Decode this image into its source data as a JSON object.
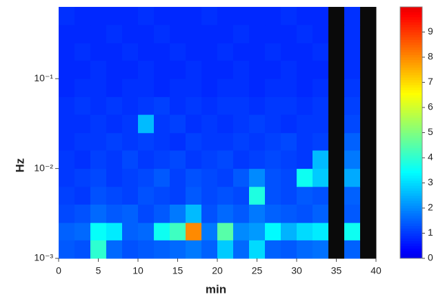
{
  "chart_data": {
    "type": "heatmap",
    "xlabel": "min",
    "ylabel": "Hz",
    "x": [
      0,
      2,
      4,
      6,
      8,
      10,
      12,
      14,
      16,
      18,
      20,
      22,
      24,
      26,
      28,
      30,
      32,
      34,
      36,
      38,
      40
    ],
    "y": [
      0.001,
      0.0016,
      0.0025,
      0.004,
      0.0063,
      0.01,
      0.016,
      0.025,
      0.04,
      0.063,
      0.1,
      0.16,
      0.25,
      0.4,
      0.63
    ],
    "z": [
      [
        1.4,
        1.3,
        4.0,
        1.6,
        1.3,
        1.4,
        1.5,
        1.6,
        1.8,
        1.5,
        2.8,
        1.6,
        3.0,
        1.5,
        1.4,
        1.6,
        1.7,
        null,
        1.5,
        null
      ],
      [
        1.5,
        1.6,
        3.5,
        3.2,
        1.5,
        1.6,
        3.6,
        4.2,
        8.0,
        1.8,
        4.5,
        2.0,
        2.2,
        3.4,
        2.5,
        3.0,
        3.2,
        null,
        3.6,
        null
      ],
      [
        1.2,
        1.3,
        1.6,
        1.4,
        1.5,
        1.2,
        1.4,
        1.8,
        2.6,
        1.3,
        1.6,
        1.4,
        1.8,
        1.5,
        1.4,
        1.3,
        1.5,
        null,
        1.4,
        null
      ],
      [
        1.1,
        1.0,
        1.3,
        1.2,
        1.1,
        1.3,
        1.2,
        1.1,
        1.4,
        1.2,
        1.3,
        1.2,
        3.8,
        1.3,
        1.2,
        1.4,
        1.3,
        null,
        1.5,
        null
      ],
      [
        1.0,
        1.1,
        1.2,
        1.0,
        1.1,
        1.2,
        1.4,
        1.1,
        1.3,
        1.2,
        1.1,
        1.4,
        2.0,
        1.3,
        1.2,
        3.6,
        2.8,
        null,
        2.4,
        null
      ],
      [
        1.0,
        0.9,
        1.1,
        1.0,
        1.2,
        1.0,
        1.1,
        1.2,
        1.0,
        1.1,
        1.2,
        1.0,
        1.1,
        1.2,
        1.1,
        1.0,
        2.6,
        null,
        1.8,
        null
      ],
      [
        0.9,
        1.0,
        1.0,
        1.1,
        1.0,
        1.1,
        1.0,
        0.9,
        1.1,
        1.0,
        1.0,
        1.1,
        1.0,
        1.1,
        1.2,
        1.0,
        1.1,
        null,
        1.5,
        null
      ],
      [
        0.9,
        0.9,
        1.0,
        0.9,
        1.0,
        2.6,
        1.0,
        1.1,
        0.9,
        1.0,
        0.9,
        1.0,
        1.1,
        1.0,
        0.9,
        1.0,
        1.0,
        null,
        1.2,
        null
      ],
      [
        0.9,
        1.0,
        0.9,
        1.0,
        0.9,
        1.0,
        1.1,
        0.9,
        1.0,
        0.9,
        1.0,
        1.0,
        0.9,
        1.0,
        1.0,
        0.9,
        1.0,
        null,
        1.1,
        null
      ],
      [
        0.8,
        0.9,
        0.9,
        0.8,
        0.9,
        0.9,
        0.8,
        0.9,
        0.9,
        0.8,
        0.9,
        0.9,
        0.8,
        0.9,
        0.9,
        0.8,
        0.9,
        null,
        1.0,
        null
      ],
      [
        0.8,
        0.8,
        0.9,
        0.8,
        0.8,
        0.9,
        0.8,
        0.8,
        0.9,
        0.8,
        0.8,
        0.9,
        0.8,
        0.8,
        0.9,
        0.8,
        0.8,
        null,
        0.9,
        null
      ],
      [
        0.8,
        0.9,
        0.8,
        0.8,
        0.9,
        0.8,
        0.8,
        0.9,
        0.8,
        0.8,
        0.9,
        0.8,
        0.8,
        0.9,
        0.8,
        0.8,
        0.9,
        null,
        0.9,
        null
      ],
      [
        0.8,
        0.8,
        0.8,
        0.9,
        0.8,
        0.8,
        0.9,
        0.8,
        0.8,
        0.8,
        0.8,
        0.9,
        0.8,
        0.8,
        0.8,
        0.9,
        0.8,
        null,
        0.9,
        null
      ],
      [
        0.9,
        0.8,
        0.8,
        0.8,
        0.8,
        0.9,
        0.8,
        0.8,
        0.8,
        0.9,
        0.8,
        0.8,
        0.8,
        0.8,
        0.9,
        0.8,
        0.8,
        null,
        0.9,
        null
      ]
    ],
    "xlim": [
      0,
      40
    ],
    "xticks": [
      0,
      5,
      10,
      15,
      20,
      25,
      30,
      35,
      40
    ],
    "ylim": [
      0.001,
      0.63
    ],
    "log_y": true,
    "yticks": [
      {
        "value": 0.001,
        "label": "10⁻³"
      },
      {
        "value": 0.01,
        "label": "10⁻²"
      },
      {
        "value": 0.1,
        "label": "10⁻¹"
      }
    ],
    "zlim": [
      0,
      10
    ],
    "zticks": [
      0,
      1,
      2,
      3,
      4,
      5,
      6,
      7,
      8,
      9
    ],
    "colormap": "jet",
    "null_color": "#0a0a0a"
  }
}
